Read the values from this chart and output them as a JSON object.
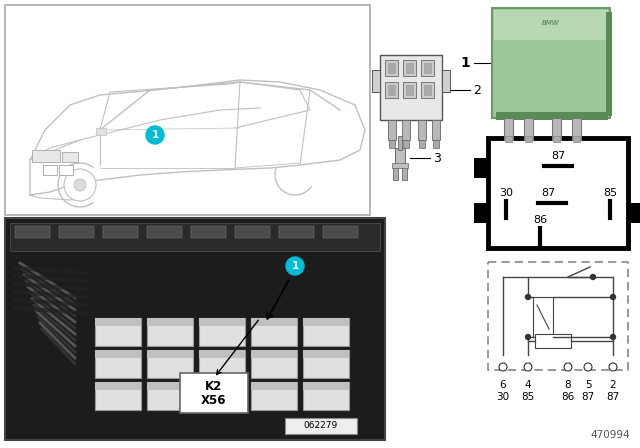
{
  "bg_color": "#ffffff",
  "badge_color": "#00bcd4",
  "relay_green": "#9ec89a",
  "relay_green_dark": "#7aaa76",
  "relay_green_light": "#b8d8b4",
  "schematic_bg": "#ffffff",
  "photo_bg": "#1a1a1a",
  "photo_mid": "#3a3a3a",
  "photo_light": "#888888",
  "connector_gray": "#b0b0b0",
  "connector_dark": "#666666",
  "diagram_id": "470994",
  "photo_id": "062279",
  "k2": "K2",
  "x56": "X56",
  "pin_labels_top": [
    "6",
    "4",
    "8",
    "5",
    "2"
  ],
  "pin_labels_bot": [
    "30",
    "85",
    "86",
    "87",
    "87"
  ],
  "schematic_labels": [
    "87",
    "30",
    "87",
    "85",
    "86"
  ],
  "label1": "1",
  "label2": "2",
  "label3": "3"
}
